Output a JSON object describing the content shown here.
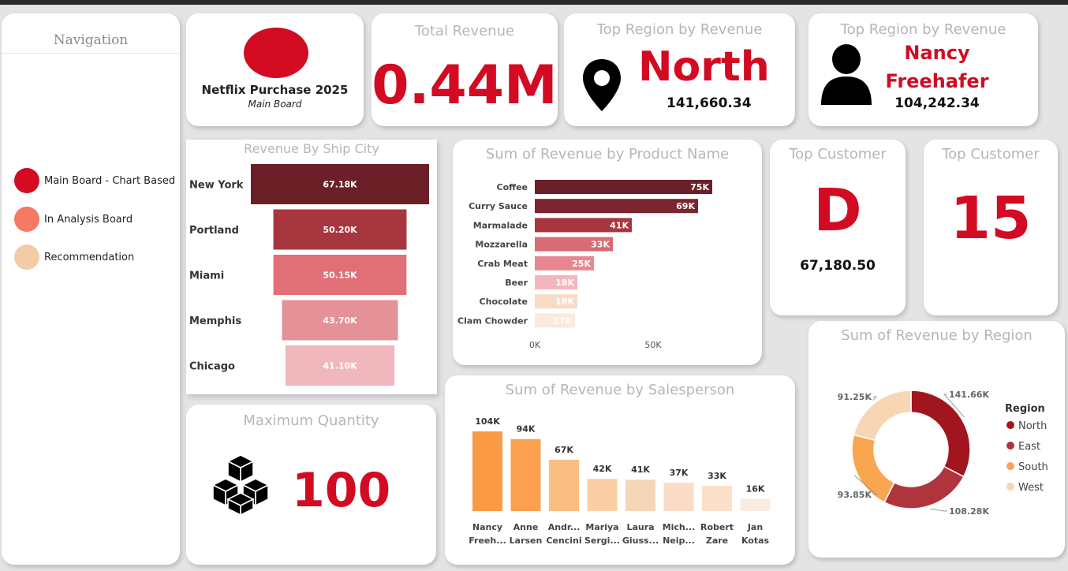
{
  "navigation": {
    "title": "Navigation",
    "items": [
      {
        "label": "Main Board - Chart Based",
        "color": "#d20b22"
      },
      {
        "label": "In Analysis Board",
        "color": "#f47a63"
      },
      {
        "label": "Recommendation",
        "color": "#f4cba7"
      }
    ]
  },
  "brand": {
    "title": "Netflix Purchase 2025",
    "subtitle": "Main Board",
    "logo_color": "#d20b22"
  },
  "total_revenue": {
    "title": "Total Revenue",
    "value": "0.44M"
  },
  "top_region": {
    "title": "Top Region by Revenue",
    "value": "North",
    "amount": "141,660.34",
    "icon": "location-pin-icon"
  },
  "top_salesperson": {
    "title": "Top Region by Revenue",
    "name_line1": "Nancy",
    "name_line2": "Freehafer",
    "amount": "104,242.34",
    "icon": "person-icon"
  },
  "top_customer": {
    "title": "Top Customer",
    "value": "D",
    "amount": "67,180.50"
  },
  "top_customer_count": {
    "title": "Top Customer",
    "value": "15"
  },
  "max_quantity": {
    "title": "Maximum Quantity",
    "value": "100",
    "icon": "cubes-icon"
  },
  "chart_data": [
    {
      "id": "city",
      "type": "bar",
      "subtype": "funnel",
      "title": "Revenue By Ship City",
      "categories": [
        "New York",
        "Portland",
        "Miami",
        "Memphis",
        "Chicago"
      ],
      "values": [
        67180,
        50200,
        50150,
        43700,
        41100
      ],
      "data_labels": [
        "67.18K",
        "50.20K",
        "50.15K",
        "43.70K",
        "41.10K"
      ],
      "colors": [
        "#6b2027",
        "#a8363f",
        "#e06f78",
        "#e59198",
        "#f0b7bc"
      ]
    },
    {
      "id": "product",
      "type": "bar",
      "orientation": "horizontal",
      "title": "Sum of Revenue by Product Name",
      "categories": [
        "Coffee",
        "Curry Sauce",
        "Marmalade",
        "Mozzarella",
        "Crab Meat",
        "Beer",
        "Chocolate",
        "Clam Chowder"
      ],
      "values": [
        75000,
        69000,
        41000,
        33000,
        25000,
        18000,
        18000,
        17000
      ],
      "data_labels": [
        "75K",
        "69K",
        "41K",
        "33K",
        "25K",
        "18K",
        "18K",
        "17K"
      ],
      "xticks": [
        "0K",
        "50K"
      ],
      "xlim": [
        0,
        100000
      ],
      "colors": [
        "#6b2027",
        "#7a2530",
        "#a8363f",
        "#d86b74",
        "#e8878f",
        "#f2b6bc",
        "#f9dcc3",
        "#fbe9dc"
      ]
    },
    {
      "id": "salesperson",
      "type": "bar",
      "title": "Sum of Revenue by Salesperson",
      "categories": [
        [
          "Nancy",
          "Freeh..."
        ],
        [
          "Anne",
          "Larsen"
        ],
        [
          "Andr...",
          "Cencini"
        ],
        [
          "Mariya",
          "Sergi..."
        ],
        [
          "Laura",
          "Giuss..."
        ],
        [
          "Mich...",
          "Neip..."
        ],
        [
          "Robert",
          "Zare"
        ],
        [
          "Jan",
          "Kotas"
        ]
      ],
      "values": [
        104000,
        94000,
        67000,
        42000,
        41000,
        37000,
        33000,
        16000
      ],
      "data_labels": [
        "104K",
        "94K",
        "67K",
        "42K",
        "41K",
        "37K",
        "33K",
        "16K"
      ],
      "colors": [
        "#fb9a45",
        "#fba04f",
        "#fbbe82",
        "#fbcfa5",
        "#f5d6b8",
        "#fadcc6",
        "#fbe0c9",
        "#fbece1"
      ]
    },
    {
      "id": "region",
      "type": "pie",
      "subtype": "donut",
      "title": "Sum of Revenue by Region",
      "legend_title": "Region",
      "legend_position": "right",
      "categories": [
        "North",
        "East",
        "South",
        "West"
      ],
      "values": [
        141660,
        108280,
        93850,
        91250
      ],
      "data_labels": [
        "141.66K",
        "108.28K",
        "93.85K",
        "91.25K"
      ],
      "colors": [
        "#a1161e",
        "#b0343c",
        "#faa651",
        "#f8d6b4"
      ]
    }
  ]
}
